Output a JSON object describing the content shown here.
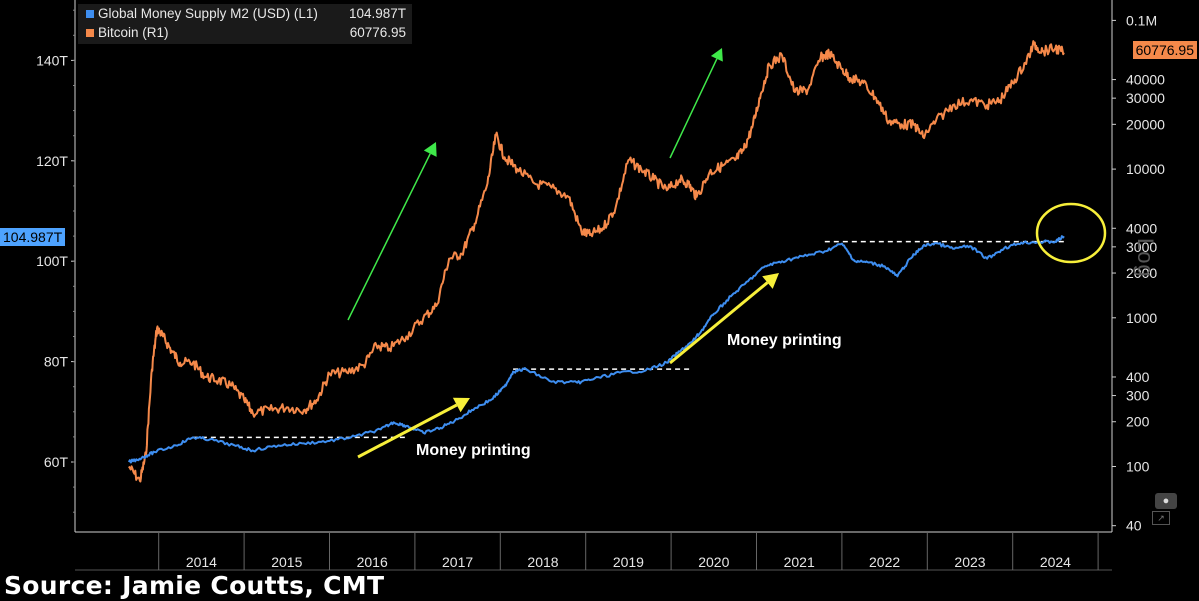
{
  "legend": {
    "m2_label": "Global Money Supply M2 (USD) (L1)",
    "m2_value": "104.987T",
    "btc_label": "Bitcoin (R1)",
    "btc_value": "60776.95"
  },
  "last_value_tags": {
    "left": "104.987T",
    "right": "60776.95"
  },
  "axis_side_label": "Log",
  "source": "Source: Jamie Coutts, CMT",
  "colors": {
    "m2": "#3e8ef0",
    "btc": "#f5894a",
    "green_arrow": "#3fe84a",
    "yellow": "#f7ef3a",
    "background": "#000000"
  },
  "icons": [
    "settings-icon",
    "chart-icon"
  ],
  "chart_data": {
    "type": "line",
    "x_ticks": [
      "2014",
      "2015",
      "2016",
      "2017",
      "2018",
      "2019",
      "2020",
      "2021",
      "2022",
      "2023",
      "2024"
    ],
    "y_left": {
      "ticks": [
        "60T",
        "80T",
        "100T",
        "120T",
        "140T"
      ],
      "range_trillions": [
        50,
        150
      ],
      "scale": "linear"
    },
    "y_right": {
      "ticks": [
        "40",
        "100",
        "200",
        "300",
        "400",
        "1000",
        "2000",
        "3000",
        "4000",
        "10000",
        "20000",
        "30000",
        "40000",
        "0.1M"
      ],
      "range": [
        40,
        100000
      ],
      "scale": "log"
    },
    "series": [
      {
        "name": "Global Money Supply M2 (USD) (L1)",
        "axis": "left",
        "x": [
          2013.65,
          2013.8,
          2013.95,
          2014.2,
          2014.4,
          2014.6,
          2014.9,
          2015.1,
          2015.4,
          2015.7,
          2016.0,
          2016.3,
          2016.6,
          2016.75,
          2016.9,
          2017.1,
          2017.3,
          2017.5,
          2017.7,
          2017.9,
          2018.05,
          2018.15,
          2018.3,
          2018.6,
          2018.9,
          2019.1,
          2019.4,
          2019.7,
          2019.95,
          2020.1,
          2020.25,
          2020.35,
          2020.5,
          2020.7,
          2020.9,
          2021.1,
          2021.3,
          2021.55,
          2021.8,
          2022.0,
          2022.15,
          2022.3,
          2022.5,
          2022.65,
          2022.8,
          2022.95,
          2023.1,
          2023.3,
          2023.5,
          2023.7,
          2023.9,
          2024.1,
          2024.3,
          2024.5,
          2024.6
        ],
        "y": [
          60.0,
          60.8,
          62.0,
          63.3,
          64.9,
          64.5,
          63.2,
          62.3,
          63.3,
          63.7,
          64.2,
          65.1,
          66.5,
          67.9,
          67.2,
          65.8,
          66.8,
          68.5,
          70.7,
          72.5,
          75.0,
          78.0,
          78.5,
          76.0,
          75.8,
          76.6,
          77.8,
          78.2,
          79.8,
          82.0,
          84.0,
          86.0,
          89.5,
          93.0,
          96.0,
          99.0,
          100.0,
          101.0,
          102.0,
          103.5,
          100.0,
          99.8,
          99.0,
          97.0,
          100.5,
          103.0,
          103.6,
          102.5,
          103.0,
          100.5,
          102.6,
          103.7,
          103.8,
          103.9,
          104.987
        ]
      },
      {
        "name": "Bitcoin (R1)",
        "axis": "right",
        "x": [
          2013.65,
          2013.78,
          2013.85,
          2013.92,
          2013.98,
          2014.05,
          2014.15,
          2014.25,
          2014.4,
          2014.55,
          2014.7,
          2014.85,
          2015.0,
          2015.1,
          2015.3,
          2015.5,
          2015.7,
          2015.85,
          2016.0,
          2016.2,
          2016.4,
          2016.55,
          2016.7,
          2016.9,
          2017.1,
          2017.25,
          2017.4,
          2017.55,
          2017.7,
          2017.85,
          2017.95,
          2018.05,
          2018.2,
          2018.4,
          2018.6,
          2018.8,
          2018.95,
          2019.05,
          2019.2,
          2019.35,
          2019.5,
          2019.65,
          2019.8,
          2019.95,
          2020.1,
          2020.2,
          2020.3,
          2020.45,
          2020.6,
          2020.75,
          2020.85,
          2020.95,
          2021.05,
          2021.15,
          2021.3,
          2021.45,
          2021.6,
          2021.75,
          2021.85,
          2022.0,
          2022.1,
          2022.25,
          2022.4,
          2022.55,
          2022.7,
          2022.85,
          2022.95,
          2023.1,
          2023.3,
          2023.5,
          2023.7,
          2023.85,
          2024.0,
          2024.15,
          2024.25,
          2024.35,
          2024.5,
          2024.6
        ],
        "y": [
          100,
          80,
          120,
          450,
          850,
          750,
          600,
          500,
          500,
          400,
          380,
          350,
          280,
          230,
          240,
          250,
          240,
          280,
          420,
          430,
          480,
          650,
          620,
          750,
          1000,
          1200,
          2500,
          2700,
          4300,
          8000,
          17000,
          12000,
          10000,
          8000,
          7500,
          6500,
          3800,
          3600,
          4000,
          5500,
          11500,
          10000,
          8500,
          7200,
          8500,
          8000,
          6500,
          9500,
          10500,
          11500,
          13500,
          19000,
          32000,
          50000,
          58000,
          33000,
          34000,
          56000,
          60000,
          47000,
          41000,
          38000,
          30000,
          21000,
          20000,
          19800,
          16500,
          21000,
          27000,
          29000,
          27000,
          29000,
          38000,
          52000,
          69000,
          62000,
          65000,
          60776.95
        ]
      }
    ],
    "annotations": [
      {
        "text": "Money printing"
      },
      {
        "text": "Money printing"
      }
    ]
  }
}
